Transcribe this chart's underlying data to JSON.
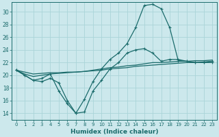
{
  "xlabel": "Humidex (Indice chaleur)",
  "bg_color": "#cce8ec",
  "grid_color": "#aad4d8",
  "line_color": "#1a6b6b",
  "xlim": [
    -0.5,
    23.5
  ],
  "ylim": [
    13,
    31.5
  ],
  "yticks": [
    14,
    16,
    18,
    20,
    22,
    24,
    26,
    28,
    30
  ],
  "xticks": [
    0,
    1,
    2,
    3,
    4,
    5,
    6,
    7,
    8,
    9,
    10,
    11,
    12,
    13,
    14,
    15,
    16,
    17,
    18,
    19,
    20,
    21,
    22,
    23
  ],
  "series_main": [
    20.8,
    20.0,
    19.2,
    19.5,
    20.2,
    17.5,
    15.5,
    14.0,
    14.2,
    17.5,
    19.2,
    21.0,
    22.0,
    23.5,
    24.0,
    24.2,
    23.5,
    22.2,
    22.5,
    22.5,
    22.2,
    22.0,
    22.0,
    22.0
  ],
  "series_peak": [
    20.8,
    20.0,
    19.2,
    19.0,
    19.5,
    18.8,
    16.0,
    14.0,
    16.2,
    19.0,
    21.0,
    22.5,
    23.5,
    25.0,
    27.5,
    31.0,
    31.2,
    30.5,
    27.5,
    22.3,
    22.2,
    22.0,
    22.0,
    22.2
  ],
  "series_line1": [
    20.8,
    20.2,
    19.8,
    20.0,
    20.2,
    20.3,
    20.4,
    20.5,
    20.6,
    20.8,
    21.0,
    21.2,
    21.3,
    21.5,
    21.6,
    21.8,
    22.0,
    22.0,
    22.1,
    22.2,
    22.2,
    22.3,
    22.3,
    22.4
  ],
  "series_line2": [
    20.8,
    20.5,
    20.2,
    20.3,
    20.4,
    20.4,
    20.5,
    20.5,
    20.6,
    20.7,
    20.8,
    21.0,
    21.1,
    21.2,
    21.4,
    21.5,
    21.6,
    21.7,
    21.8,
    21.9,
    22.0,
    22.0,
    22.1,
    22.2
  ]
}
